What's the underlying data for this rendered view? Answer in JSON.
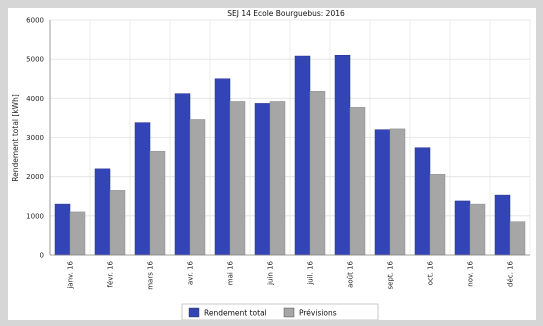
{
  "chart_data": {
    "type": "bar",
    "title": "SEJ 14 Ecole Bourguebus: 2016",
    "xlabel": "",
    "ylabel": "Rendement total [kWh]",
    "ylim": [
      0,
      6000
    ],
    "yticks": [
      0,
      1000,
      2000,
      3000,
      4000,
      5000,
      6000
    ],
    "grid": true,
    "legend_position": "bottom",
    "categories": [
      "janv. 16",
      "févr. 16",
      "mars 16",
      "avr. 16",
      "mai 16",
      "juin 16",
      "juil. 16",
      "août 16",
      "sept. 16",
      "oct. 16",
      "nov. 16",
      "déc. 16"
    ],
    "series": [
      {
        "name": "Rendement total",
        "color": "#3344b5",
        "values": [
          1300,
          2200,
          3380,
          4120,
          4500,
          3870,
          5080,
          5100,
          3200,
          2740,
          1380,
          1530
        ]
      },
      {
        "name": "Prévisions",
        "color": "#a6a6a6",
        "values": [
          1100,
          1650,
          2650,
          3460,
          3920,
          3920,
          4180,
          3770,
          3220,
          2060,
          1300,
          850
        ]
      }
    ]
  }
}
